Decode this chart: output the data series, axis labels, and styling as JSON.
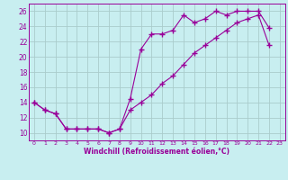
{
  "xlabel": "Windchill (Refroidissement éolien,°C)",
  "bg_color": "#c8eef0",
  "line_color": "#990099",
  "grid_color": "#aacccc",
  "xlim": [
    -0.5,
    23.5
  ],
  "ylim": [
    9.0,
    27.0
  ],
  "yticks": [
    10,
    12,
    14,
    16,
    18,
    20,
    22,
    24,
    26
  ],
  "xticks": [
    0,
    1,
    2,
    3,
    4,
    5,
    6,
    7,
    8,
    9,
    10,
    11,
    12,
    13,
    14,
    15,
    16,
    17,
    18,
    19,
    20,
    21,
    22,
    23
  ],
  "line1_x": [
    0,
    1,
    2,
    3,
    4,
    5,
    6,
    7,
    8,
    9,
    10,
    11,
    12,
    13,
    14,
    15,
    16,
    17,
    18,
    19,
    20,
    21,
    22
  ],
  "line1_y": [
    14.0,
    13.0,
    12.5,
    10.5,
    10.5,
    10.5,
    10.5,
    10.0,
    10.5,
    14.5,
    21.0,
    23.0,
    23.0,
    23.5,
    25.5,
    24.5,
    25.0,
    26.0,
    25.5,
    26.0,
    26.0,
    26.0,
    23.8
  ],
  "line2_x": [
    0,
    1,
    2,
    3,
    4,
    5,
    6,
    7,
    8,
    9,
    10,
    11,
    12,
    13,
    14,
    15,
    16,
    17,
    18,
    19,
    20,
    21,
    22
  ],
  "line2_y": [
    14.0,
    13.0,
    12.5,
    10.5,
    10.5,
    10.5,
    10.5,
    10.0,
    10.5,
    13.0,
    14.0,
    15.0,
    16.5,
    17.5,
    19.0,
    20.5,
    21.5,
    22.5,
    23.5,
    24.5,
    25.0,
    25.5,
    21.5
  ],
  "marker": "+"
}
